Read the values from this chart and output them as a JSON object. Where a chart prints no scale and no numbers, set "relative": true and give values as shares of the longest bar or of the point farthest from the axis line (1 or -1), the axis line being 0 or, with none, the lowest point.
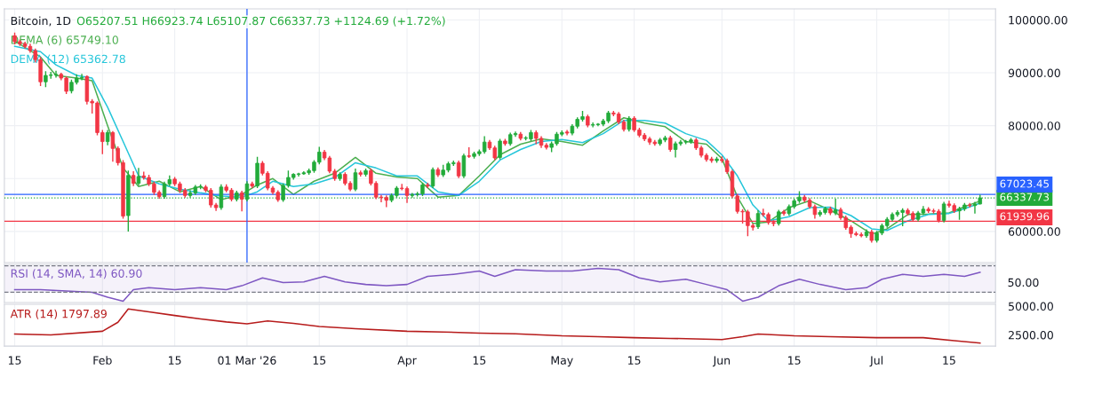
{
  "chart_data": [
    {
      "type": "candlestick",
      "title": "Bitcoin, 1D",
      "subtitle": "O65207.51 H66923.74 L65107.87 C66337.73 +1124.69 (+1.72%)",
      "legend": "top left",
      "grid": true,
      "tick_labels": "y",
      "xlim": [
        "2026-01-13",
        "2026-07-24"
      ],
      "xticks": [
        {
          "value": "2026-01-15",
          "label": null
        },
        {
          "value": "2026-02-01",
          "label": null
        },
        {
          "value": "2026-02-15",
          "label": null
        },
        {
          "value": "2026-03-01",
          "label": null
        },
        {
          "value": "2026-03-15",
          "label": null
        },
        {
          "value": "2026-04-01",
          "label": null
        },
        {
          "value": "2026-04-15",
          "label": null
        },
        {
          "value": "2026-05-01",
          "label": null
        },
        {
          "value": "2026-05-15",
          "label": null
        },
        {
          "value": "2026-06-01",
          "label": null
        },
        {
          "value": "2026-06-15",
          "label": null
        },
        {
          "value": "2026-07-01",
          "label": null
        },
        {
          "value": "2026-07-15",
          "label": null
        }
      ],
      "ylim": [
        54100,
        102100
      ],
      "yticks": [
        {
          "value": 60000,
          "label": "60000.00"
        },
        {
          "value": 70000,
          "label": null
        },
        {
          "value": 80000,
          "label": "80000.00"
        },
        {
          "value": 90000,
          "label": "90000.00"
        },
        {
          "value": 100000,
          "label": "100000.00"
        }
      ],
      "x": [
        "2026-01-15",
        "2026-01-16",
        "2026-01-17",
        "2026-01-18",
        "2026-01-19",
        "2026-01-20",
        "2026-01-21",
        "2026-01-22",
        "2026-01-23",
        "2026-01-24",
        "2026-01-25",
        "2026-01-26",
        "2026-01-27",
        "2026-01-28",
        "2026-01-29",
        "2026-01-30",
        "2026-01-31",
        "2026-02-01",
        "2026-02-02",
        "2026-02-03",
        "2026-02-04",
        "2026-02-05",
        "2026-02-06",
        "2026-02-07",
        "2026-02-08",
        "2026-02-09",
        "2026-02-10",
        "2026-02-11",
        "2026-02-12",
        "2026-02-13",
        "2026-02-14",
        "2026-02-15",
        "2026-02-16",
        "2026-02-17",
        "2026-02-18",
        "2026-02-19",
        "2026-02-20",
        "2026-02-21",
        "2026-02-22",
        "2026-02-23",
        "2026-02-24",
        "2026-02-25",
        "2026-02-26",
        "2026-02-27",
        "2026-02-28",
        "2026-03-01",
        "2026-03-02",
        "2026-03-03",
        "2026-03-04",
        "2026-03-05",
        "2026-03-06",
        "2026-03-07",
        "2026-03-08",
        "2026-03-09",
        "2026-03-10",
        "2026-03-11",
        "2026-03-12",
        "2026-03-13",
        "2026-03-14",
        "2026-03-15",
        "2026-03-16",
        "2026-03-17",
        "2026-03-18",
        "2026-03-19",
        "2026-03-20",
        "2026-03-21",
        "2026-03-22",
        "2026-03-23",
        "2026-03-24",
        "2026-03-25",
        "2026-03-26",
        "2026-03-27",
        "2026-03-28",
        "2026-03-29",
        "2026-03-30",
        "2026-03-31",
        "2026-04-01",
        "2026-04-02",
        "2026-04-03",
        "2026-04-04",
        "2026-04-05",
        "2026-04-06",
        "2026-04-07",
        "2026-04-08",
        "2026-04-09",
        "2026-04-10",
        "2026-04-11",
        "2026-04-12",
        "2026-04-13",
        "2026-04-14",
        "2026-04-15",
        "2026-04-16",
        "2026-04-17",
        "2026-04-18",
        "2026-04-19",
        "2026-04-20",
        "2026-04-21",
        "2026-04-22",
        "2026-04-23",
        "2026-04-24",
        "2026-04-25",
        "2026-04-26",
        "2026-04-27",
        "2026-04-28",
        "2026-04-29",
        "2026-04-30",
        "2026-05-01",
        "2026-05-02",
        "2026-05-03",
        "2026-05-04",
        "2026-05-05",
        "2026-05-06",
        "2026-05-07",
        "2026-05-08",
        "2026-05-09",
        "2026-05-10",
        "2026-05-11",
        "2026-05-12",
        "2026-05-13",
        "2026-05-14",
        "2026-05-15",
        "2026-05-16",
        "2026-05-17",
        "2026-05-18",
        "2026-05-19",
        "2026-05-20",
        "2026-05-21",
        "2026-05-22",
        "2026-05-23",
        "2026-05-24",
        "2026-05-25",
        "2026-05-26",
        "2026-05-27",
        "2026-05-28",
        "2026-05-29",
        "2026-05-30",
        "2026-05-31",
        "2026-06-01",
        "2026-06-02",
        "2026-06-03",
        "2026-06-04",
        "2026-06-05",
        "2026-06-06",
        "2026-06-07",
        "2026-06-08",
        "2026-06-09",
        "2026-06-10",
        "2026-06-11",
        "2026-06-12",
        "2026-06-13",
        "2026-06-14",
        "2026-06-15",
        "2026-06-16",
        "2026-06-17",
        "2026-06-18",
        "2026-06-19",
        "2026-06-20",
        "2026-06-21",
        "2026-06-22",
        "2026-06-23",
        "2026-06-24",
        "2026-06-25",
        "2026-06-26",
        "2026-06-27",
        "2026-06-28",
        "2026-06-29",
        "2026-06-30",
        "2026-07-01",
        "2026-07-02",
        "2026-07-03",
        "2026-07-04",
        "2026-07-05",
        "2026-07-06",
        "2026-07-07",
        "2026-07-08",
        "2026-07-09",
        "2026-07-10",
        "2026-07-11",
        "2026-07-12",
        "2026-07-13",
        "2026-07-14",
        "2026-07-15",
        "2026-07-16",
        "2026-07-17",
        "2026-07-18",
        "2026-07-19",
        "2026-07-20",
        "2026-07-21"
      ],
      "ohlc": [
        [
          97000,
          97600,
          95400,
          95900
        ],
        [
          95900,
          96300,
          95100,
          95500
        ],
        [
          95500,
          95900,
          94600,
          95000
        ],
        [
          95000,
          95500,
          93800,
          94200
        ],
        [
          94200,
          94600,
          92000,
          92500
        ],
        [
          92500,
          93000,
          87500,
          88300
        ],
        [
          88300,
          90300,
          87300,
          89500
        ],
        [
          89500,
          90200,
          88900,
          89600
        ],
        [
          89600,
          90400,
          89100,
          89700
        ],
        [
          89700,
          90000,
          88600,
          89000
        ],
        [
          89000,
          89300,
          86000,
          86500
        ],
        [
          86600,
          88700,
          86100,
          88200
        ],
        [
          88200,
          89700,
          87800,
          89000
        ],
        [
          89000,
          89800,
          88600,
          89100
        ],
        [
          89300,
          89500,
          84000,
          84600
        ],
        [
          84600,
          85000,
          82300,
          84300
        ],
        [
          84300,
          84600,
          78200,
          78700
        ],
        [
          78700,
          79200,
          74600,
          77000
        ],
        [
          77000,
          79200,
          76300,
          78700
        ],
        [
          78700,
          79000,
          73200,
          75700
        ],
        [
          75700,
          76100,
          72500,
          73000
        ],
        [
          73000,
          73500,
          62400,
          62900
        ],
        [
          63000,
          71500,
          60000,
          70600
        ],
        [
          70600,
          71400,
          68600,
          69100
        ],
        [
          69100,
          72000,
          68700,
          70400
        ],
        [
          70500,
          71300,
          69800,
          70200
        ],
        [
          70200,
          70700,
          68600,
          69000
        ],
        [
          69000,
          69400,
          66900,
          67400
        ],
        [
          67400,
          67800,
          66200,
          66600
        ],
        [
          66600,
          69400,
          66200,
          69000
        ],
        [
          69000,
          70600,
          68600,
          69800
        ],
        [
          69900,
          70300,
          68600,
          69000
        ],
        [
          69000,
          69400,
          67300,
          67800
        ],
        [
          67800,
          68200,
          66400,
          66800
        ],
        [
          66800,
          67800,
          66400,
          67300
        ],
        [
          67300,
          68800,
          66900,
          68400
        ],
        [
          68400,
          68900,
          68000,
          68500
        ],
        [
          68400,
          68800,
          67400,
          67800
        ],
        [
          67800,
          68200,
          64500,
          65000
        ],
        [
          65000,
          65400,
          63900,
          64500
        ],
        [
          64500,
          68900,
          64100,
          68400
        ],
        [
          68400,
          68900,
          67400,
          67800
        ],
        [
          67800,
          68200,
          65700,
          66100
        ],
        [
          66100,
          67700,
          65700,
          67300
        ],
        [
          67300,
          67700,
          63800,
          66100
        ],
        [
          66100,
          69500,
          65700,
          69000
        ],
        [
          69000,
          69400,
          68200,
          68600
        ],
        [
          68600,
          74100,
          68200,
          72900
        ],
        [
          72900,
          73300,
          70600,
          71000
        ],
        [
          71000,
          71400,
          67800,
          68200
        ],
        [
          68200,
          68600,
          67000,
          67400
        ],
        [
          67400,
          67800,
          65600,
          66000
        ],
        [
          66000,
          69100,
          65600,
          68700
        ],
        [
          68700,
          71500,
          68300,
          70200
        ],
        [
          70200,
          71000,
          69800,
          70800
        ],
        [
          70800,
          71100,
          70400,
          70900
        ],
        [
          70900,
          71400,
          70700,
          71100
        ],
        [
          71100,
          71900,
          70700,
          71500
        ],
        [
          71500,
          73500,
          71100,
          73100
        ],
        [
          73100,
          76000,
          72700,
          75000
        ],
        [
          75000,
          75400,
          73500,
          73900
        ],
        [
          73900,
          74300,
          71000,
          71400
        ],
        [
          71400,
          71800,
          69600,
          70000
        ],
        [
          70000,
          71200,
          69600,
          70800
        ],
        [
          70800,
          71200,
          68700,
          69100
        ],
        [
          69100,
          69500,
          67600,
          68000
        ],
        [
          68000,
          71900,
          67600,
          71100
        ],
        [
          71100,
          71500,
          70400,
          70800
        ],
        [
          70800,
          71900,
          70400,
          71500
        ],
        [
          71500,
          71900,
          68700,
          69100
        ],
        [
          69100,
          69500,
          66100,
          66500
        ],
        [
          66500,
          66900,
          65500,
          66400
        ],
        [
          66400,
          66800,
          64600,
          65900
        ],
        [
          65900,
          67200,
          65500,
          66800
        ],
        [
          66800,
          68600,
          66400,
          68200
        ],
        [
          68200,
          69000,
          67800,
          68100
        ],
        [
          68100,
          68500,
          65400,
          66800
        ],
        [
          66800,
          67300,
          66400,
          67000
        ],
        [
          67000,
          67500,
          66600,
          67100
        ],
        [
          67100,
          69200,
          66700,
          68800
        ],
        [
          68800,
          69200,
          68200,
          68600
        ],
        [
          68600,
          72100,
          68200,
          71700
        ],
        [
          71700,
          72100,
          70300,
          70700
        ],
        [
          70700,
          72600,
          70300,
          71600
        ],
        [
          71600,
          73200,
          71200,
          72800
        ],
        [
          72800,
          73400,
          72400,
          73000
        ],
        [
          73000,
          73400,
          70100,
          70500
        ],
        [
          70500,
          74700,
          70100,
          74300
        ],
        [
          74300,
          75900,
          73900,
          74200
        ],
        [
          74200,
          75100,
          73800,
          74700
        ],
        [
          74700,
          75500,
          74300,
          75100
        ],
        [
          75100,
          78000,
          74700,
          76900
        ],
        [
          76900,
          77300,
          75400,
          75800
        ],
        [
          75800,
          76200,
          73500,
          73900
        ],
        [
          74000,
          77500,
          73600,
          77100
        ],
        [
          77100,
          77500,
          76200,
          76600
        ],
        [
          76600,
          78700,
          76200,
          78300
        ],
        [
          78300,
          78900,
          77900,
          78500
        ],
        [
          78400,
          78800,
          77200,
          77600
        ],
        [
          77600,
          78000,
          77200,
          77700
        ],
        [
          77500,
          79200,
          77100,
          78700
        ],
        [
          78700,
          79100,
          76500,
          77600
        ],
        [
          77600,
          78000,
          75800,
          76300
        ],
        [
          76300,
          76700,
          75500,
          75900
        ],
        [
          75900,
          77000,
          75000,
          76600
        ],
        [
          76600,
          78800,
          76200,
          78400
        ],
        [
          78400,
          79100,
          78000,
          78700
        ],
        [
          78800,
          79200,
          78200,
          78600
        ],
        [
          78600,
          80300,
          78200,
          79900
        ],
        [
          79900,
          81600,
          79500,
          81200
        ],
        [
          81200,
          82800,
          80800,
          81700
        ],
        [
          81700,
          82100,
          79700,
          80100
        ],
        [
          80100,
          80600,
          79700,
          80200
        ],
        [
          80200,
          80500,
          79900,
          80300
        ],
        [
          80300,
          81300,
          79900,
          80900
        ],
        [
          80900,
          82800,
          80500,
          82400
        ],
        [
          82400,
          82800,
          81800,
          82200
        ],
        [
          82200,
          82600,
          80300,
          80700
        ],
        [
          80700,
          81100,
          78900,
          79300
        ],
        [
          79300,
          81800,
          78900,
          81400
        ],
        [
          81400,
          81800,
          78800,
          79200
        ],
        [
          79200,
          79600,
          77800,
          78200
        ],
        [
          78200,
          78600,
          77100,
          77500
        ],
        [
          77500,
          77900,
          76400,
          76900
        ],
        [
          76900,
          77300,
          76200,
          76600
        ],
        [
          76600,
          77700,
          76200,
          77300
        ],
        [
          77300,
          78100,
          76900,
          77700
        ],
        [
          77700,
          78100,
          75100,
          75500
        ],
        [
          75500,
          77000,
          74000,
          76600
        ],
        [
          76600,
          77300,
          76200,
          76900
        ],
        [
          76900,
          77300,
          76500,
          77000
        ],
        [
          77000,
          77700,
          76600,
          77300
        ],
        [
          77300,
          77700,
          75400,
          75800
        ],
        [
          75800,
          76200,
          74000,
          74400
        ],
        [
          74400,
          74800,
          73200,
          73600
        ],
        [
          73700,
          74100,
          73000,
          73400
        ],
        [
          73400,
          74100,
          73000,
          73700
        ],
        [
          73600,
          74200,
          73000,
          73400
        ],
        [
          73400,
          73800,
          70900,
          71300
        ],
        [
          71300,
          71700,
          66300,
          66700
        ],
        [
          66700,
          67100,
          63400,
          63800
        ],
        [
          63800,
          64200,
          61500,
          63700
        ],
        [
          63700,
          64100,
          59100,
          61100
        ],
        [
          61100,
          61500,
          60200,
          60800
        ],
        [
          60900,
          64000,
          60500,
          63400
        ],
        [
          63400,
          64300,
          62800,
          63200
        ],
        [
          63200,
          63600,
          61300,
          61700
        ],
        [
          61700,
          62100,
          61000,
          61500
        ],
        [
          61500,
          64100,
          61100,
          63700
        ],
        [
          63700,
          64100,
          63000,
          63400
        ],
        [
          63400,
          65100,
          63000,
          64700
        ],
        [
          64700,
          66200,
          64300,
          65800
        ],
        [
          65800,
          67600,
          65400,
          66500
        ],
        [
          66500,
          66900,
          65500,
          65900
        ],
        [
          65900,
          66300,
          64300,
          64700
        ],
        [
          64700,
          65100,
          62400,
          63200
        ],
        [
          63200,
          64000,
          62800,
          63600
        ],
        [
          63600,
          64700,
          63200,
          64300
        ],
        [
          64300,
          64700,
          63100,
          63500
        ],
        [
          63500,
          66200,
          63100,
          64100
        ],
        [
          64100,
          64500,
          62200,
          62600
        ],
        [
          62600,
          63000,
          60300,
          60700
        ],
        [
          60800,
          61200,
          58800,
          59600
        ],
        [
          59600,
          60000,
          59100,
          59400
        ],
        [
          59400,
          59800,
          58900,
          59200
        ],
        [
          59200,
          60400,
          58800,
          59900
        ],
        [
          59900,
          60300,
          57900,
          58300
        ],
        [
          58300,
          60100,
          57900,
          59700
        ],
        [
          59700,
          61500,
          59300,
          61100
        ],
        [
          61100,
          62700,
          60700,
          62300
        ],
        [
          62300,
          63600,
          61900,
          63200
        ],
        [
          63200,
          64000,
          62800,
          63600
        ],
        [
          63600,
          64400,
          61000,
          64000
        ],
        [
          64000,
          64400,
          63000,
          63400
        ],
        [
          63400,
          63800,
          61900,
          62300
        ],
        [
          62300,
          63900,
          61900,
          63500
        ],
        [
          63500,
          64800,
          63100,
          64200
        ],
        [
          64200,
          64600,
          63500,
          63900
        ],
        [
          63900,
          64300,
          63400,
          63800
        ],
        [
          63800,
          64200,
          61700,
          62100
        ],
        [
          62100,
          65600,
          61700,
          65200
        ],
        [
          65200,
          65800,
          64500,
          64900
        ],
        [
          64900,
          65300,
          63500,
          63900
        ],
        [
          63900,
          64700,
          62200,
          64300
        ],
        [
          64300,
          65400,
          63900,
          65000
        ],
        [
          65000,
          65400,
          64500,
          64900
        ],
        [
          64900,
          65600,
          63400,
          65200
        ],
        [
          65207.51,
          66923.74,
          65107.87,
          66337.73
        ]
      ],
      "series": [
        {
          "type": "line",
          "name": "DEMA (6) 65749.10",
          "color": "#4caf50",
          "x": [
            "2026-01-15",
            "2026-01-20",
            "2026-01-23",
            "2026-01-27",
            "2026-01-30",
            "2026-02-02",
            "2026-02-05",
            "2026-02-08",
            "2026-02-12",
            "2026-02-16",
            "2026-02-20",
            "2026-02-24",
            "2026-02-28",
            "2026-03-03",
            "2026-03-06",
            "2026-03-10",
            "2026-03-14",
            "2026-03-18",
            "2026-03-22",
            "2026-03-26",
            "2026-03-30",
            "2026-04-03",
            "2026-04-07",
            "2026-04-11",
            "2026-04-15",
            "2026-04-19",
            "2026-04-23",
            "2026-04-27",
            "2026-05-01",
            "2026-05-05",
            "2026-05-09",
            "2026-05-13",
            "2026-05-17",
            "2026-05-21",
            "2026-05-25",
            "2026-05-29",
            "2026-06-01",
            "2026-06-04",
            "2026-06-07",
            "2026-06-10",
            "2026-06-14",
            "2026-06-18",
            "2026-06-22",
            "2026-06-26",
            "2026-06-30",
            "2026-07-03",
            "2026-07-07",
            "2026-07-11",
            "2026-07-15",
            "2026-07-18",
            "2026-07-21"
          ],
          "values": [
            96000,
            93000,
            89500,
            89000,
            88500,
            80000,
            72000,
            68500,
            69500,
            67500,
            68500,
            66000,
            67000,
            68800,
            70000,
            67000,
            69500,
            71000,
            74000,
            71000,
            70300,
            70000,
            66500,
            66800,
            70500,
            74500,
            76500,
            77500,
            77000,
            76300,
            79000,
            81500,
            80500,
            79800,
            77000,
            76500,
            73800,
            66500,
            61500,
            61800,
            64500,
            65800,
            64000,
            62000,
            59500,
            60500,
            63200,
            63300,
            63500,
            64700,
            65749.1
          ]
        },
        {
          "type": "line",
          "name": "DEMA (12) 65362.78",
          "color": "#26c6da",
          "x": [
            "2026-01-15",
            "2026-01-20",
            "2026-01-23",
            "2026-01-27",
            "2026-01-30",
            "2026-02-02",
            "2026-02-05",
            "2026-02-08",
            "2026-02-12",
            "2026-02-16",
            "2026-02-20",
            "2026-02-24",
            "2026-02-28",
            "2026-03-03",
            "2026-03-06",
            "2026-03-10",
            "2026-03-14",
            "2026-03-18",
            "2026-03-22",
            "2026-03-26",
            "2026-03-30",
            "2026-04-03",
            "2026-04-07",
            "2026-04-11",
            "2026-04-15",
            "2026-04-19",
            "2026-04-23",
            "2026-04-27",
            "2026-05-01",
            "2026-05-05",
            "2026-05-09",
            "2026-05-13",
            "2026-05-17",
            "2026-05-21",
            "2026-05-25",
            "2026-05-29",
            "2026-06-01",
            "2026-06-04",
            "2026-06-07",
            "2026-06-10",
            "2026-06-14",
            "2026-06-18",
            "2026-06-22",
            "2026-06-26",
            "2026-06-30",
            "2026-07-03",
            "2026-07-07",
            "2026-07-11",
            "2026-07-15",
            "2026-07-18",
            "2026-07-21"
          ],
          "values": [
            95000,
            94000,
            91500,
            89500,
            89000,
            83500,
            77000,
            70500,
            69000,
            68000,
            67300,
            66700,
            66500,
            67500,
            69500,
            68500,
            69000,
            70200,
            73000,
            72000,
            70500,
            70500,
            67500,
            66800,
            69500,
            73500,
            75500,
            77000,
            77400,
            76800,
            78500,
            81000,
            81000,
            80500,
            78500,
            77200,
            74500,
            70500,
            65000,
            62000,
            62800,
            64500,
            64600,
            63000,
            60500,
            60200,
            62000,
            63200,
            63400,
            64300,
            65362.78
          ]
        }
      ],
      "ref_lines": [
        {
          "axis": "y",
          "value": 67023.45,
          "label": "67023.45",
          "color": "#2962ff",
          "line_style": "solid"
        },
        {
          "axis": "y",
          "value": 66337.73,
          "label": "66337.73",
          "color": "#22ab3a",
          "line_style": "dotted"
        },
        {
          "axis": "y",
          "value": 61939.96,
          "label": "61939.96",
          "color": "#f23645",
          "line_style": "solid"
        },
        {
          "axis": "x",
          "value": "2026-03-01",
          "color": "#2962ff",
          "line_style": "solid"
        }
      ]
    },
    {
      "type": "line",
      "legend": "top left",
      "grid": "x",
      "tick_labels": "y",
      "xlim": [
        "2026-01-13",
        "2026-07-24"
      ],
      "xticks": [
        {
          "value": "2026-01-15",
          "label": null
        },
        {
          "value": "2026-02-01",
          "label": null
        },
        {
          "value": "2026-02-15",
          "label": null
        },
        {
          "value": "2026-03-01",
          "label": null
        },
        {
          "value": "2026-03-15",
          "label": null
        },
        {
          "value": "2026-04-01",
          "label": null
        },
        {
          "value": "2026-04-15",
          "label": null
        },
        {
          "value": "2026-05-01",
          "label": null
        },
        {
          "value": "2026-05-15",
          "label": null
        },
        {
          "value": "2026-06-01",
          "label": null
        },
        {
          "value": "2026-06-15",
          "label": null
        },
        {
          "value": "2026-07-01",
          "label": null
        },
        {
          "value": "2026-07-15",
          "label": null
        }
      ],
      "relative": true,
      "annotations": [
        "50.00"
      ],
      "bands": [
        {
          "axis": "y",
          "from": 0.27,
          "to": 1.08,
          "color": "#7e57c2"
        }
      ],
      "ref_lines": [
        {
          "axis": "y",
          "value": 0.27,
          "color": "#787b86",
          "line_style": "dashed"
        },
        {
          "axis": "y",
          "value": 1.08,
          "color": "#787b86",
          "line_style": "dashed"
        }
      ],
      "series": [
        {
          "name": "RSI (14, SMA, 14) 60.90",
          "color": "#7e57c2",
          "x": [
            "2026-01-15",
            "2026-01-20",
            "2026-01-25",
            "2026-01-30",
            "2026-02-02",
            "2026-02-05",
            "2026-02-07",
            "2026-02-10",
            "2026-02-15",
            "2026-02-20",
            "2026-02-25",
            "2026-02-28",
            "2026-03-04",
            "2026-03-08",
            "2026-03-12",
            "2026-03-16",
            "2026-03-20",
            "2026-03-24",
            "2026-03-28",
            "2026-04-01",
            "2026-04-05",
            "2026-04-10",
            "2026-04-15",
            "2026-04-18",
            "2026-04-22",
            "2026-04-28",
            "2026-05-03",
            "2026-05-08",
            "2026-05-12",
            "2026-05-16",
            "2026-05-20",
            "2026-05-25",
            "2026-05-29",
            "2026-06-02",
            "2026-06-05",
            "2026-06-08",
            "2026-06-12",
            "2026-06-16",
            "2026-06-20",
            "2026-06-25",
            "2026-06-29",
            "2026-07-02",
            "2026-07-06",
            "2026-07-10",
            "2026-07-14",
            "2026-07-18",
            "2026-07-21"
          ],
          "values": [
            0.35,
            0.35,
            0.31,
            0.27,
            0.12,
            0,
            0.35,
            0.41,
            0.35,
            0.41,
            0.35,
            0.47,
            0.71,
            0.57,
            0.59,
            0.76,
            0.59,
            0.51,
            0.47,
            0.51,
            0.76,
            0.82,
            0.92,
            0.76,
            0.96,
            0.92,
            0.92,
            1,
            0.96,
            0.71,
            0.59,
            0.67,
            0.51,
            0.35,
            0,
            0.12,
            0.47,
            0.67,
            0.51,
            0.35,
            0.41,
            0.67,
            0.82,
            0.76,
            0.82,
            0.76,
            0.88
          ]
        }
      ]
    },
    {
      "type": "line",
      "legend": "top left",
      "grid": "x",
      "xlim": [
        "2026-01-13",
        "2026-07-24"
      ],
      "xticks": [
        {
          "value": "2026-01-15",
          "label": "15"
        },
        {
          "value": "2026-02-01",
          "label": "Feb"
        },
        {
          "value": "2026-02-15",
          "label": "15"
        },
        {
          "value": "2026-03-01",
          "label": "01 Mar '26"
        },
        {
          "value": "2026-03-15",
          "label": "15"
        },
        {
          "value": "2026-04-01",
          "label": "Apr"
        },
        {
          "value": "2026-04-15",
          "label": "15"
        },
        {
          "value": "2026-05-01",
          "label": "May"
        },
        {
          "value": "2026-05-15",
          "label": "15"
        },
        {
          "value": "2026-06-01",
          "label": "Jun"
        },
        {
          "value": "2026-06-15",
          "label": "15"
        },
        {
          "value": "2026-07-01",
          "label": "Jul"
        },
        {
          "value": "2026-07-15",
          "label": "15"
        }
      ],
      "ylim": [
        1530,
        5160
      ],
      "yticks": [
        {
          "value": 2500,
          "label": "2500.00"
        },
        {
          "value": 5000,
          "label": "5000.00"
        }
      ],
      "series": [
        {
          "name": "ATR (14) 1797.89",
          "color": "#b71c1c",
          "x": [
            "2026-01-15",
            "2026-01-22",
            "2026-02-01",
            "2026-02-04",
            "2026-02-06",
            "2026-02-10",
            "2026-02-15",
            "2026-02-20",
            "2026-02-25",
            "2026-03-01",
            "2026-03-05",
            "2026-03-10",
            "2026-03-15",
            "2026-03-22",
            "2026-04-01",
            "2026-04-08",
            "2026-04-15",
            "2026-04-22",
            "2026-05-01",
            "2026-05-08",
            "2026-05-15",
            "2026-05-22",
            "2026-06-01",
            "2026-06-05",
            "2026-06-08",
            "2026-06-15",
            "2026-06-22",
            "2026-07-01",
            "2026-07-10",
            "2026-07-16",
            "2026-07-21"
          ],
          "values": [
            2580,
            2500,
            2820,
            3600,
            4760,
            4500,
            4190,
            3900,
            3630,
            3470,
            3710,
            3500,
            3230,
            3050,
            2820,
            2750,
            2660,
            2600,
            2420,
            2350,
            2260,
            2200,
            2100,
            2350,
            2580,
            2420,
            2350,
            2260,
            2260,
            2000,
            1797.89
          ]
        }
      ]
    }
  ]
}
